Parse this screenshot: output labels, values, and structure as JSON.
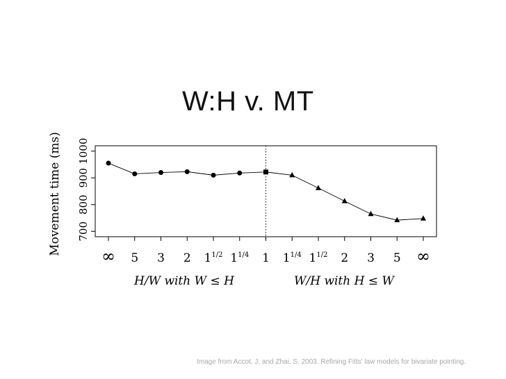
{
  "slide": {
    "title": "W:H v. MT",
    "caption": "Image from Accot. J. and Zhai, S. 2003. Refining Fitts' law models for bivariate pointing."
  },
  "chart_data": {
    "type": "line",
    "ylabel": "Movement time (ms)",
    "yticks": [
      700,
      800,
      900,
      1000
    ],
    "ylim": [
      680,
      1020
    ],
    "x_tick_labels": [
      {
        "base": "∞",
        "exp": ""
      },
      {
        "base": "5",
        "exp": ""
      },
      {
        "base": "3",
        "exp": ""
      },
      {
        "base": "2",
        "exp": ""
      },
      {
        "base": "1",
        "exp": "1/2"
      },
      {
        "base": "1",
        "exp": "1/4"
      },
      {
        "base": "1",
        "exp": ""
      },
      {
        "base": "1",
        "exp": "1/4"
      },
      {
        "base": "1",
        "exp": "1/2"
      },
      {
        "base": "2",
        "exp": ""
      },
      {
        "base": "3",
        "exp": ""
      },
      {
        "base": "5",
        "exp": ""
      },
      {
        "base": "∞",
        "exp": ""
      }
    ],
    "x_group_labels": [
      "H/W with W ≤ H",
      "W/H with H ≤ W"
    ],
    "divider_index": 6,
    "series": [
      {
        "marker": "circle",
        "indices": [
          0,
          1,
          2,
          3,
          4,
          5
        ],
        "values": [
          955,
          915,
          920,
          923,
          910,
          918
        ]
      },
      {
        "marker": "square",
        "indices": [
          6
        ],
        "values": [
          922
        ]
      },
      {
        "marker": "triangle",
        "indices": [
          7,
          8,
          9,
          10,
          11,
          12
        ],
        "values": [
          910,
          862,
          813,
          765,
          742,
          748
        ]
      }
    ],
    "line_color": "#000000",
    "grid": false
  }
}
